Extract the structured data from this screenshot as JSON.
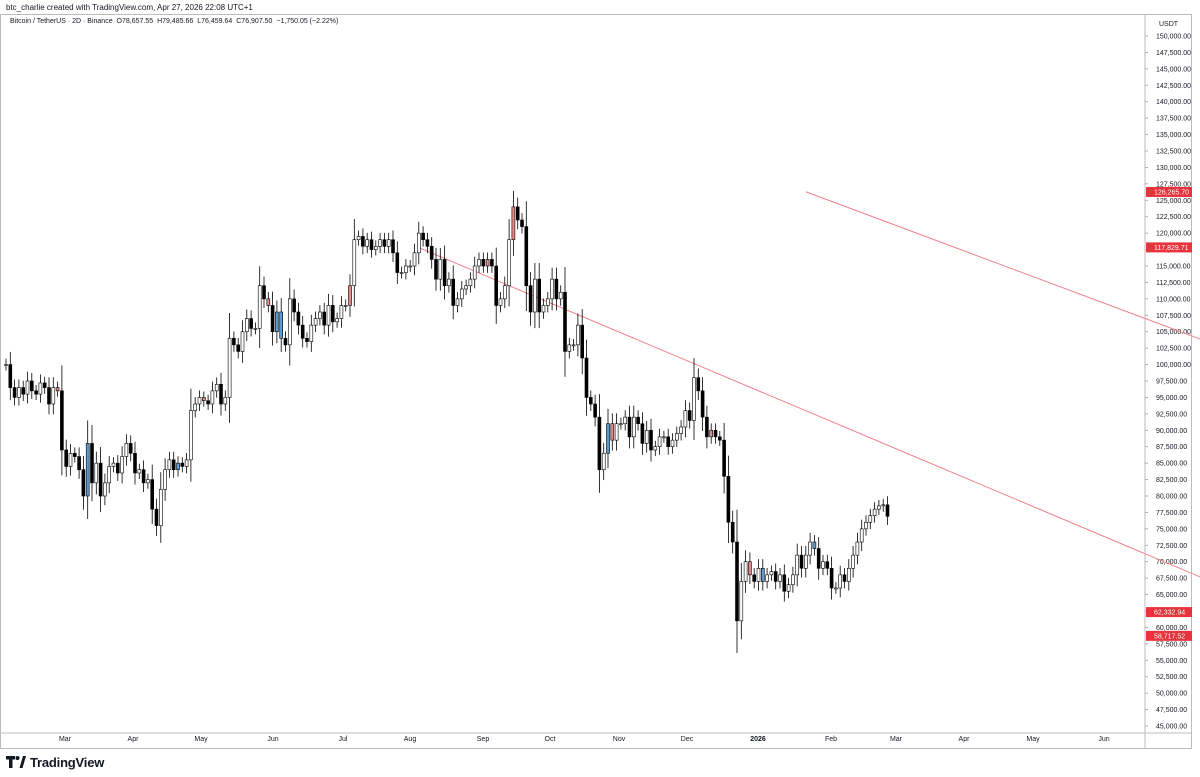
{
  "header": {
    "attribution": "btc_charlie created with TradingView.com, Apr 27, 2026 22:08 UTC+1"
  },
  "legend": {
    "symbol": "Bitcoin / TetherUS · 2D · Binance",
    "open": "O78,657.55",
    "high": "H79,485.66",
    "low": "L76,459.64",
    "close": "C76,907.50",
    "change": "−1,750.05 (−2.22%)"
  },
  "footer": {
    "brand": "TradingView",
    "logo_icon": "tradingview-logo-icon"
  },
  "colors": {
    "up_body": "#ffffff",
    "down_body": "#000000",
    "outline": "#000000",
    "highlight_blue": "#5b9bd5",
    "highlight_red": "#e48a8a",
    "trendline": "#f0808a",
    "price_tag": "#e8323c",
    "text": "#131722"
  },
  "chart_data": {
    "type": "candlestick",
    "timeframe": "2D",
    "exchange": "Binance",
    "currency_label": "USDT",
    "ylim": [
      44000,
      152500
    ],
    "yticks": [
      "45,000.00",
      "47,500.00",
      "50,000.00",
      "52,500.00",
      "55,000.00",
      "57,500.00",
      "60,000.00",
      "62,500.00",
      "65,000.00",
      "67,500.00",
      "70,000.00",
      "72,500.00",
      "75,000.00",
      "77,500.00",
      "80,000.00",
      "82,500.00",
      "85,000.00",
      "87,500.00",
      "90,000.00",
      "92,500.00",
      "95,000.00",
      "97,500.00",
      "100,000.00",
      "102,500.00",
      "105,000.00",
      "107,500.00",
      "110,000.00",
      "112,500.00",
      "115,000.00",
      "117,500.00",
      "120,000.00",
      "122,500.00",
      "125,000.00",
      "127,500.00",
      "130,000.00",
      "132,500.00",
      "135,000.00",
      "137,500.00",
      "140,000.00",
      "142,500.00",
      "145,000.00",
      "147,500.00",
      "150,000.00"
    ],
    "x_labels": [
      "Mar",
      "Apr",
      "May",
      "Jun",
      "Jul",
      "Aug",
      "Sep",
      "Oct",
      "Nov",
      "Dec",
      "2026",
      "Feb",
      "Mar",
      "Apr",
      "May",
      "Jun"
    ],
    "price_tags": [
      {
        "value": 126265.7,
        "label": "126,265.70"
      },
      {
        "value": 117829.71,
        "label": "117,829.71"
      },
      {
        "value": 62332.94,
        "label": "62,332.94"
      },
      {
        "value": 58717.52,
        "label": "58,717.52"
      }
    ],
    "trendlines": [
      {
        "name": "upper-channel-line",
        "x0": 186,
        "y0": 126300,
        "x1": 447,
        "y1": 62500
      },
      {
        "name": "lower-channel-line",
        "x0": 96,
        "y0": 117800,
        "x1": 311,
        "y1": 58500
      }
    ],
    "candle_closes": [
      100000,
      96500,
      95000,
      96500,
      95500,
      97500,
      96000,
      95500,
      97200,
      96500,
      94000,
      96500,
      96000,
      87000,
      84500,
      86500,
      86000,
      84000,
      80000,
      88000,
      82000,
      85000,
      80000,
      82000,
      84500,
      85000,
      83500,
      86000,
      88000,
      86500,
      83500,
      84000,
      82000,
      82500,
      78000,
      75500,
      81000,
      84000,
      85500,
      84000,
      85000,
      84500,
      85500,
      93000,
      94000,
      95000,
      94500,
      94000,
      96000,
      97000,
      94000,
      95000,
      104000,
      103000,
      102000,
      105000,
      107000,
      105500,
      105500,
      112000,
      110000,
      109000,
      105000,
      108000,
      104000,
      103000,
      110000,
      108000,
      106000,
      104000,
      103500,
      106000,
      107000,
      108000,
      106000,
      109000,
      106500,
      107000,
      109000,
      109000,
      112000,
      119000,
      119500,
      118000,
      119000,
      117500,
      118000,
      119000,
      118000,
      119000,
      117000,
      114000,
      114000,
      115000,
      115000,
      117000,
      120000,
      119000,
      118000,
      116000,
      113000,
      116000,
      112000,
      113000,
      109000,
      110000,
      111500,
      112000,
      113000,
      115000,
      116000,
      115000,
      116000,
      115000,
      109000,
      110000,
      112000,
      119000,
      124000,
      122000,
      121000,
      112000,
      108000,
      113000,
      108000,
      109000,
      110000,
      113000,
      110000,
      111000,
      102000,
      103000,
      103000,
      106000,
      101000,
      95000,
      94000,
      92000,
      84000,
      86500,
      91000,
      88500,
      91000,
      91000,
      92000,
      89000,
      92000,
      91000,
      88000,
      90000,
      87000,
      87500,
      89000,
      89000,
      87500,
      88500,
      89500,
      90500,
      93000,
      91500,
      98000,
      96000,
      92000,
      89000,
      90000,
      89000,
      88500,
      83000,
      76000,
      73000,
      61000,
      67000,
      70000,
      68000,
      67000,
      69000,
      67000,
      68000,
      68500,
      67000,
      68000,
      65500,
      66500,
      68000,
      71000,
      69000,
      71000,
      73000,
      72000,
      69000,
      70000,
      69000,
      66000,
      66000,
      68000,
      67000,
      69000,
      71000,
      73000,
      75000,
      76000,
      77000,
      78000,
      78500,
      78657,
      76907
    ]
  }
}
